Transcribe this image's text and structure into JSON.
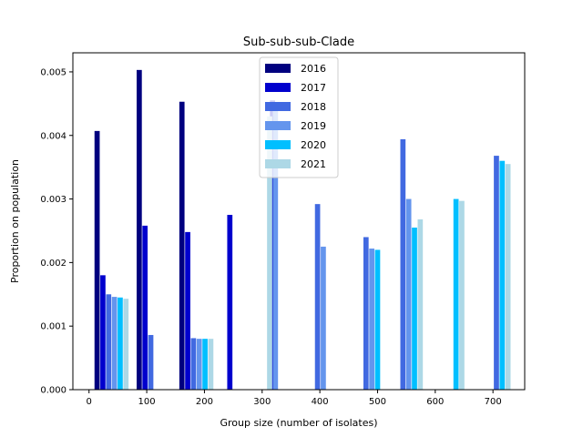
{
  "chart_data": {
    "type": "bar",
    "title": "Sub-sub-sub-Clade",
    "xlabel": "Group size (number of isolates)",
    "ylabel": "Proportion on population",
    "xlim": [
      -28,
      755
    ],
    "ylim": [
      0,
      0.0053
    ],
    "xticks": [
      0,
      100,
      200,
      300,
      400,
      500,
      600,
      700
    ],
    "yticks": [
      0.0,
      0.001,
      0.002,
      0.003,
      0.004,
      0.005
    ],
    "ytick_labels": [
      "0.000",
      "0.001",
      "0.002",
      "0.003",
      "0.004",
      "0.005"
    ],
    "bar_width": 9,
    "legend_position": "top-center",
    "grid": false,
    "series": [
      {
        "name": "2016",
        "color": "#00007f",
        "points": [
          {
            "x": 14,
            "y": 0.00407
          },
          {
            "x": 87,
            "y": 0.00503
          },
          {
            "x": 161,
            "y": 0.00453
          }
        ]
      },
      {
        "name": "2017",
        "color": "#0000cd",
        "points": [
          {
            "x": 24,
            "y": 0.0018
          },
          {
            "x": 97,
            "y": 0.00258
          },
          {
            "x": 171,
            "y": 0.00248
          },
          {
            "x": 244,
            "y": 0.00275
          },
          {
            "x": 318,
            "y": 0.00455
          }
        ]
      },
      {
        "name": "2018",
        "color": "#4169e1",
        "points": [
          {
            "x": 34,
            "y": 0.0015
          },
          {
            "x": 107,
            "y": 0.00086
          },
          {
            "x": 181,
            "y": 0.00081
          },
          {
            "x": 396,
            "y": 0.00292
          },
          {
            "x": 480,
            "y": 0.0024
          },
          {
            "x": 544,
            "y": 0.00394
          },
          {
            "x": 706,
            "y": 0.00368
          }
        ]
      },
      {
        "name": "2019",
        "color": "#6495ed",
        "points": [
          {
            "x": 44,
            "y": 0.00146
          },
          {
            "x": 191,
            "y": 0.0008
          },
          {
            "x": 323,
            "y": 0.0044
          },
          {
            "x": 406,
            "y": 0.00225
          },
          {
            "x": 490,
            "y": 0.00222
          },
          {
            "x": 554,
            "y": 0.003
          }
        ]
      },
      {
        "name": "2020",
        "color": "#00bfff",
        "points": [
          {
            "x": 54,
            "y": 0.00145
          },
          {
            "x": 201,
            "y": 0.0008
          },
          {
            "x": 500,
            "y": 0.0022
          },
          {
            "x": 564,
            "y": 0.00255
          },
          {
            "x": 636,
            "y": 0.003
          },
          {
            "x": 716,
            "y": 0.0036
          }
        ]
      },
      {
        "name": "2021",
        "color": "#add8e6",
        "points": [
          {
            "x": 64,
            "y": 0.00143
          },
          {
            "x": 211,
            "y": 0.0008
          },
          {
            "x": 313,
            "y": 0.0043
          },
          {
            "x": 574,
            "y": 0.00268
          },
          {
            "x": 646,
            "y": 0.00297
          },
          {
            "x": 726,
            "y": 0.00355
          }
        ]
      }
    ]
  }
}
